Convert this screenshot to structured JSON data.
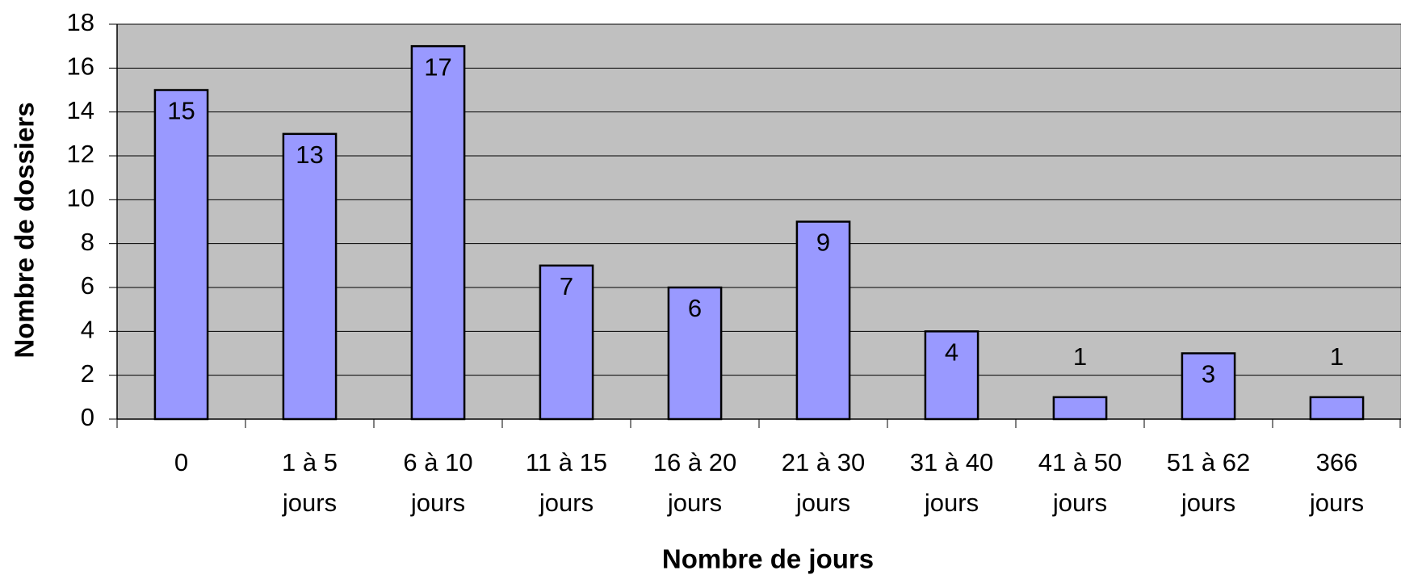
{
  "chart_data": {
    "type": "bar",
    "x_label": "Nombre de jours",
    "y_label": "Nombre de dossiers",
    "categories": [
      [
        "0"
      ],
      [
        "1 à 5",
        "jours"
      ],
      [
        "6 à 10",
        "jours"
      ],
      [
        "11 à 15",
        "jours"
      ],
      [
        "16 à 20",
        "jours"
      ],
      [
        "21 à 30",
        "jours"
      ],
      [
        "31 à 40",
        "jours"
      ],
      [
        "41 à 50",
        "jours"
      ],
      [
        "51 à 62",
        "jours"
      ],
      [
        "366",
        "jours"
      ]
    ],
    "values": [
      15,
      13,
      17,
      7,
      6,
      9,
      4,
      1,
      3,
      1
    ],
    "color": "#9999ff",
    "plot_background": "#c0c0c0",
    "ylim": [
      0,
      18
    ],
    "yticks": [
      0,
      2,
      4,
      6,
      8,
      10,
      12,
      14,
      16,
      18
    ],
    "grid": true
  }
}
